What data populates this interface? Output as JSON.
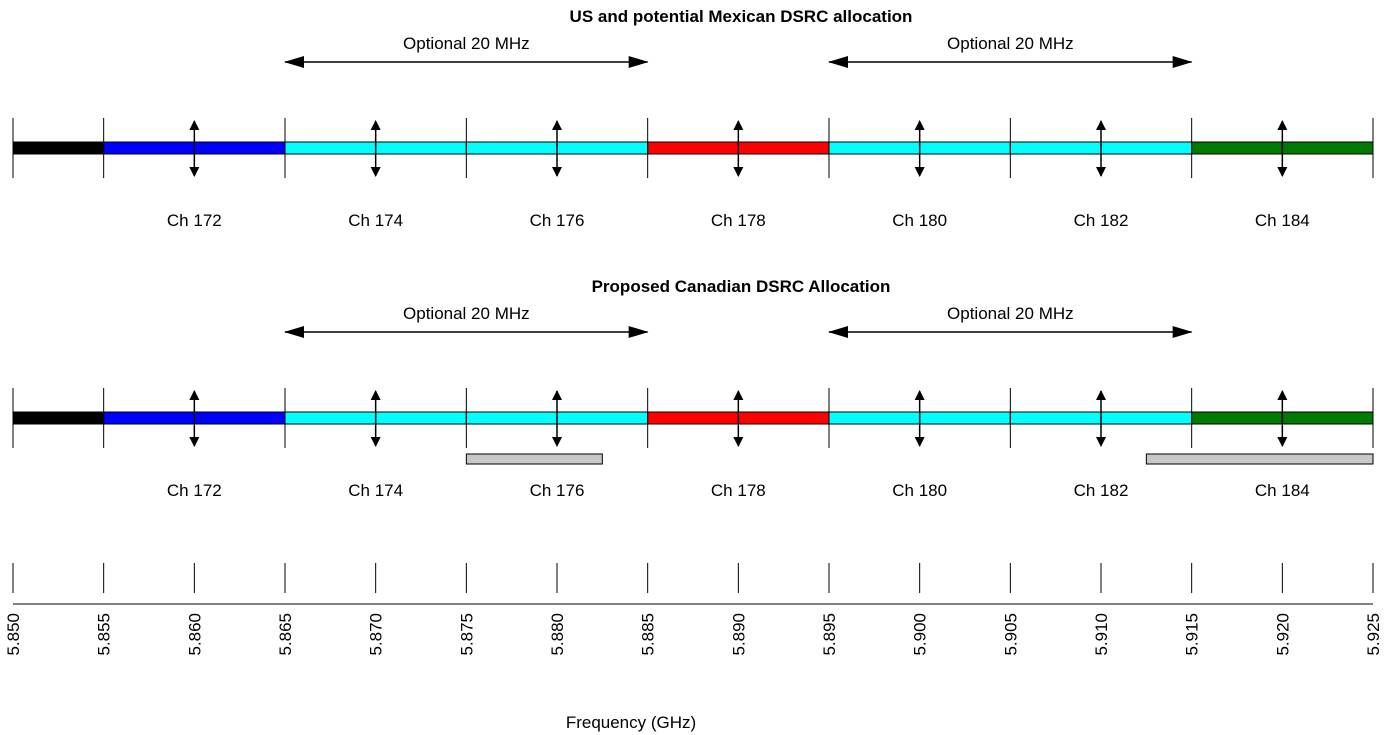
{
  "sections": [
    {
      "title": "US and potential Mexican DSRC allocation",
      "optional_labels": [
        "Optional 20 MHz",
        "Optional 20 MHz"
      ],
      "channels": [
        {
          "label": "Ch 172",
          "start": 5.855,
          "end": 5.865,
          "color": "#0000FF"
        },
        {
          "label": "Ch 174",
          "start": 5.865,
          "end": 5.875,
          "color": "#00FFFF"
        },
        {
          "label": "Ch 176",
          "start": 5.875,
          "end": 5.885,
          "color": "#00FFFF"
        },
        {
          "label": "Ch 178",
          "start": 5.885,
          "end": 5.895,
          "color": "#FF0000"
        },
        {
          "label": "Ch 180",
          "start": 5.895,
          "end": 5.905,
          "color": "#00FFFF"
        },
        {
          "label": "Ch 182",
          "start": 5.905,
          "end": 5.915,
          "color": "#00FFFF"
        },
        {
          "label": "Ch 184",
          "start": 5.915,
          "end": 5.925,
          "color": "#007A00"
        }
      ],
      "guard": {
        "start": 5.85,
        "end": 5.855,
        "color": "#000000"
      },
      "optional_spans": [
        [
          5.865,
          5.885
        ],
        [
          5.895,
          5.915
        ]
      ],
      "restricted_bars": []
    },
    {
      "title": "Proposed Canadian DSRC Allocation",
      "optional_labels": [
        "Optional 20 MHz",
        "Optional 20 MHz"
      ],
      "channels": [
        {
          "label": "Ch 172",
          "start": 5.855,
          "end": 5.865,
          "color": "#0000FF"
        },
        {
          "label": "Ch 174",
          "start": 5.865,
          "end": 5.875,
          "color": "#00FFFF"
        },
        {
          "label": "Ch 176",
          "start": 5.875,
          "end": 5.885,
          "color": "#00FFFF"
        },
        {
          "label": "Ch 178",
          "start": 5.885,
          "end": 5.895,
          "color": "#FF0000"
        },
        {
          "label": "Ch 180",
          "start": 5.895,
          "end": 5.905,
          "color": "#00FFFF"
        },
        {
          "label": "Ch 182",
          "start": 5.905,
          "end": 5.915,
          "color": "#00FFFF"
        },
        {
          "label": "Ch 184",
          "start": 5.915,
          "end": 5.925,
          "color": "#007A00"
        }
      ],
      "guard": {
        "start": 5.85,
        "end": 5.855,
        "color": "#000000"
      },
      "optional_spans": [
        [
          5.865,
          5.885
        ],
        [
          5.895,
          5.915
        ]
      ],
      "restricted_bars": [
        {
          "start": 5.875,
          "end": 5.8825,
          "color": "#C8C8C8"
        },
        {
          "start": 5.9125,
          "end": 5.925,
          "color": "#C8C8C8"
        }
      ]
    }
  ],
  "frequency_axis": {
    "label": "Frequency (GHz)",
    "min": 5.85,
    "max": 5.925,
    "ticks": [
      "5.850",
      "5.855",
      "5.860",
      "5.865",
      "5.870",
      "5.875",
      "5.880",
      "5.885",
      "5.890",
      "5.895",
      "5.900",
      "5.905",
      "5.910",
      "5.915",
      "5.920",
      "5.925"
    ]
  }
}
